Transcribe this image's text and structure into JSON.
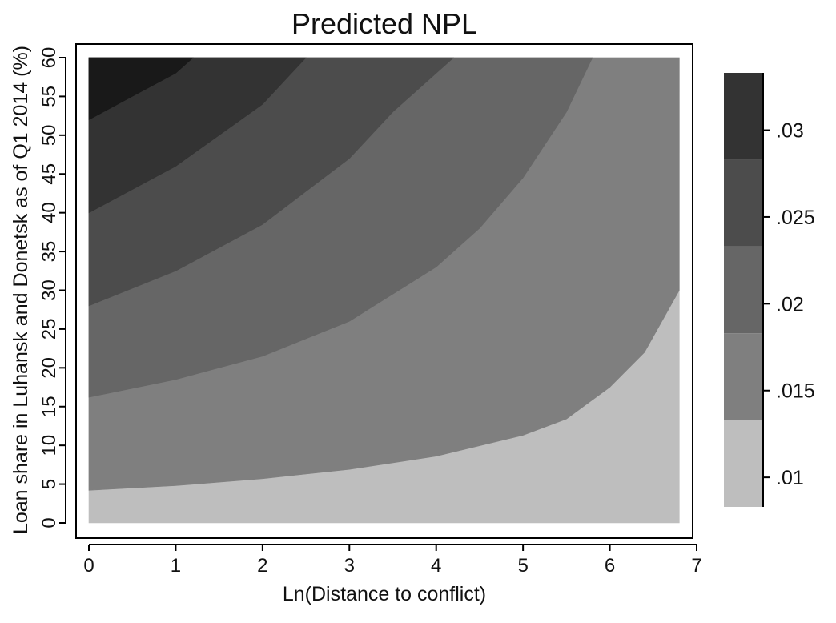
{
  "chart_data": {
    "type": "contour",
    "title": "Predicted NPL",
    "xlabel": "Ln(Distance to conflict)",
    "ylabel": "Loan share in Luhansk and Donetsk as of Q1 2014 (%)",
    "xlim": [
      0,
      7
    ],
    "ylim": [
      0,
      60
    ],
    "x_ticks": [
      "0",
      "1",
      "2",
      "3",
      "4",
      "5",
      "6",
      "7"
    ],
    "y_ticks": [
      "0",
      "5",
      "10",
      "15",
      "20",
      "25",
      "30",
      "35",
      "40",
      "45",
      "50",
      "55",
      "60"
    ],
    "x_data_range": [
      0,
      6.8
    ],
    "legend": {
      "position": "right",
      "ticks": [
        ".01",
        ".015",
        ".02",
        ".025",
        ".03"
      ],
      "tick_values": [
        0.01,
        0.015,
        0.02,
        0.025,
        0.03
      ],
      "range": [
        0.0083,
        0.0333
      ]
    },
    "levels": [
      {
        "range": [
          0.0083,
          0.0133
        ],
        "color": "#bebebe"
      },
      {
        "range": [
          0.0133,
          0.0183
        ],
        "color": "#7f7f7f"
      },
      {
        "range": [
          0.0183,
          0.0233
        ],
        "color": "#666666"
      },
      {
        "range": [
          0.0233,
          0.0283
        ],
        "color": "#4c4c4c"
      },
      {
        "range": [
          0.0283,
          0.0333
        ],
        "color": "#333333"
      },
      {
        "range": [
          0.0333,
          0.04
        ],
        "color": "#191919"
      }
    ],
    "boundaries": [
      {
        "between": "level1-level2",
        "points": [
          [
            0,
            4.2
          ],
          [
            1,
            4.8
          ],
          [
            2,
            5.7
          ],
          [
            3,
            6.9
          ],
          [
            4,
            8.6
          ],
          [
            5,
            11.3
          ],
          [
            5.5,
            13.4
          ],
          [
            6,
            17.5
          ],
          [
            6.4,
            22.0
          ],
          [
            6.8,
            30.0
          ]
        ]
      },
      {
        "between": "level2-level3",
        "points": [
          [
            0,
            16.2
          ],
          [
            1,
            18.5
          ],
          [
            2,
            21.5
          ],
          [
            3,
            26.0
          ],
          [
            4,
            33.0
          ],
          [
            4.5,
            38.0
          ],
          [
            5,
            44.5
          ],
          [
            5.5,
            53.0
          ],
          [
            5.8,
            60.0
          ]
        ]
      },
      {
        "between": "level3-level4",
        "points": [
          [
            0,
            28.0
          ],
          [
            1,
            32.5
          ],
          [
            2,
            38.5
          ],
          [
            3,
            47.0
          ],
          [
            3.5,
            53.0
          ],
          [
            4.2,
            60.0
          ]
        ]
      },
      {
        "between": "level4-level5",
        "points": [
          [
            0,
            40.0
          ],
          [
            1,
            46.0
          ],
          [
            2,
            54.0
          ],
          [
            2.5,
            60.0
          ]
        ]
      },
      {
        "between": "level5-level6",
        "points": [
          [
            0,
            52.0
          ],
          [
            0.5,
            55.0
          ],
          [
            1,
            58.0
          ],
          [
            1.2,
            60.0
          ]
        ]
      }
    ]
  }
}
